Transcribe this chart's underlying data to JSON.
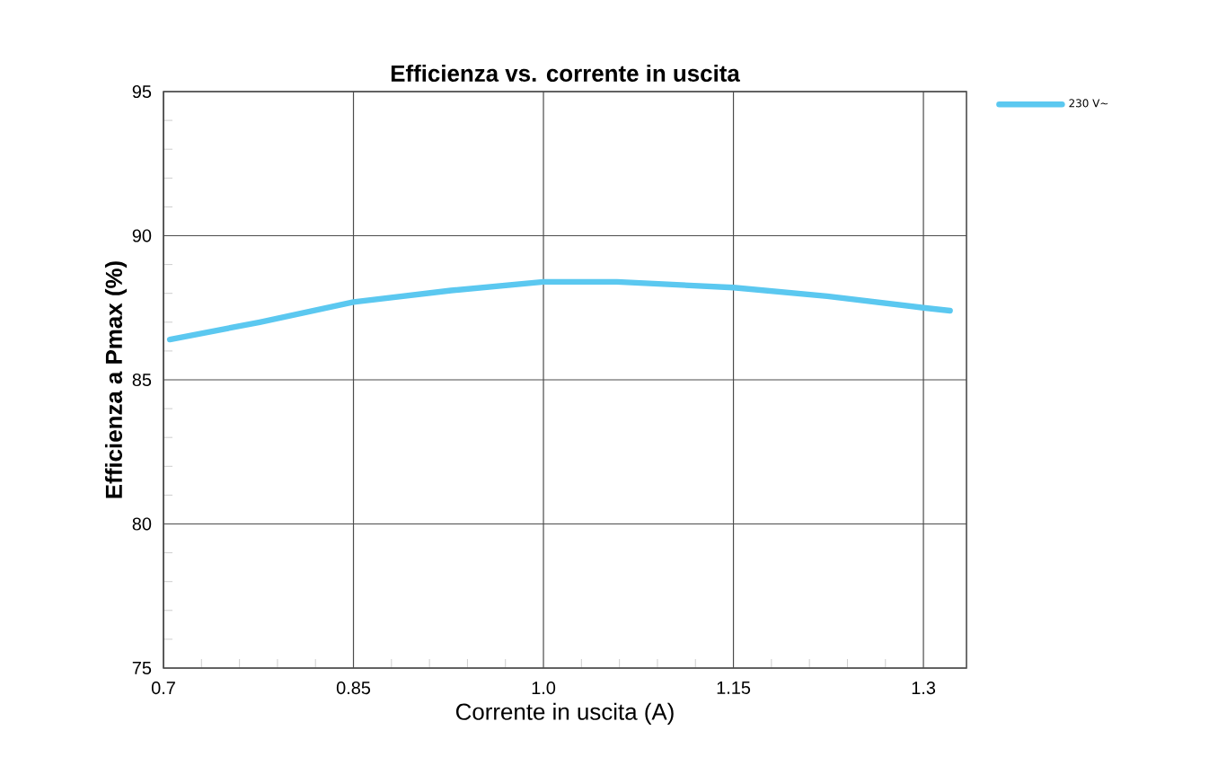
{
  "chart_data": {
    "type": "line",
    "title": "Efficienza vs. corrente in uscita",
    "xlabel": "Corrente in uscita (A)",
    "ylabel": "Efficienza a Pmax (%)",
    "x": [
      0.705,
      0.776,
      0.85,
      0.927,
      1.0,
      1.058,
      1.15,
      1.224,
      1.3,
      1.321
    ],
    "series": [
      {
        "name": "230 V∼",
        "color": "#5bc8f0",
        "values": [
          86.4,
          87.0,
          87.7,
          88.1,
          88.4,
          88.4,
          88.2,
          87.9,
          87.5,
          87.4
        ]
      }
    ],
    "xlim": [
      0.7,
      1.334
    ],
    "ylim": [
      75,
      95
    ],
    "xticks": [
      0.7,
      0.85,
      {
        "value": 1.0,
        "label": "1.0"
      },
      1.15,
      1.3
    ],
    "yticks": [
      75,
      80,
      85,
      90,
      95
    ],
    "grid": true,
    "legend": "top right",
    "line_style": "solid",
    "marker": "none"
  }
}
